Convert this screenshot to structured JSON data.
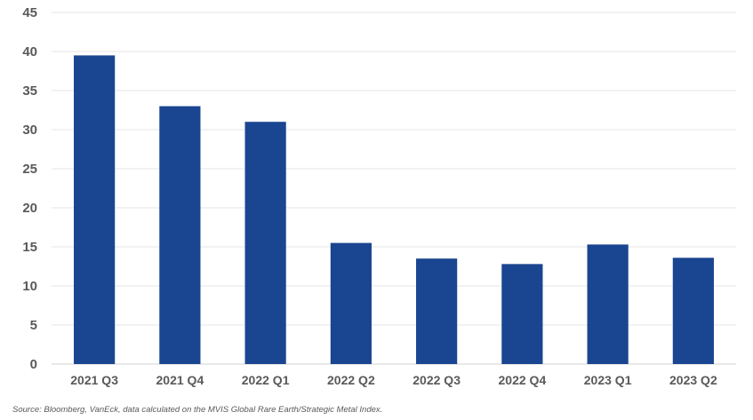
{
  "chart_data": {
    "type": "bar",
    "categories": [
      "2021 Q3",
      "2021 Q4",
      "2022 Q1",
      "2022 Q2",
      "2022 Q3",
      "2022 Q4",
      "2023 Q1",
      "2023 Q2"
    ],
    "values": [
      39.5,
      33.0,
      31.0,
      15.5,
      13.5,
      12.8,
      15.3,
      13.6
    ],
    "title": "",
    "xlabel": "",
    "ylabel": "",
    "ylim": [
      0,
      45
    ],
    "yticks": [
      0,
      5,
      10,
      15,
      20,
      25,
      30,
      35,
      40,
      45
    ],
    "grid": true,
    "legend": "none",
    "bar_color": "#1A4590",
    "grid_color": "#E6E6E6",
    "axis_color": "#D9D9D9",
    "text_color": "#595959"
  },
  "source_note": "Source: Bloomberg, VanEck, data calculated on the MVIS Global Rare Earth/Strategic Metal Index."
}
